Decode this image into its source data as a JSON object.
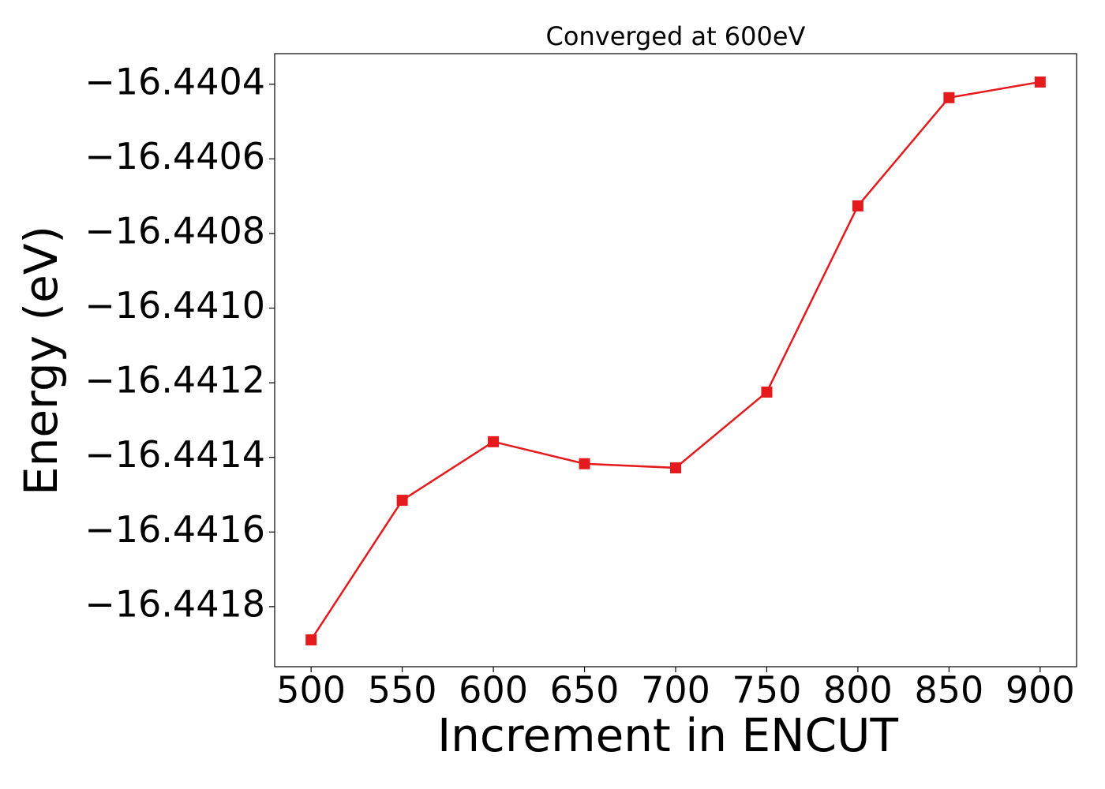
{
  "chart_data": {
    "type": "line",
    "title": "Converged at 600eV",
    "x_label": "Increment in ENCUT",
    "y_label": "Energy (eV)",
    "x": [
      500,
      550,
      600,
      650,
      700,
      750,
      800,
      850,
      900
    ],
    "series": [
      {
        "color": "#e41a1c",
        "marker": "square",
        "values": [
          -16.441889,
          -16.441515,
          -16.441358,
          -16.441417,
          -16.441428,
          -16.441225,
          -16.440726,
          -16.440436,
          -16.440394
        ]
      }
    ],
    "xlim": [
      480,
      920
    ],
    "ylim": [
      -16.441961,
      -16.440318
    ],
    "xticks": [
      500,
      550,
      600,
      650,
      700,
      750,
      800,
      850,
      900
    ],
    "yticks": [
      {
        "value": -16.4418,
        "label": "−16.4418"
      },
      {
        "value": -16.4416,
        "label": "−16.4416"
      },
      {
        "value": -16.4414,
        "label": "−16.4414"
      },
      {
        "value": -16.4412,
        "label": "−16.4412"
      },
      {
        "value": -16.441,
        "label": "−16.4410"
      },
      {
        "value": -16.4408,
        "label": "−16.4408"
      },
      {
        "value": -16.4406,
        "label": "−16.4406"
      },
      {
        "value": -16.4404,
        "label": "−16.4404"
      }
    ],
    "grid": false
  }
}
